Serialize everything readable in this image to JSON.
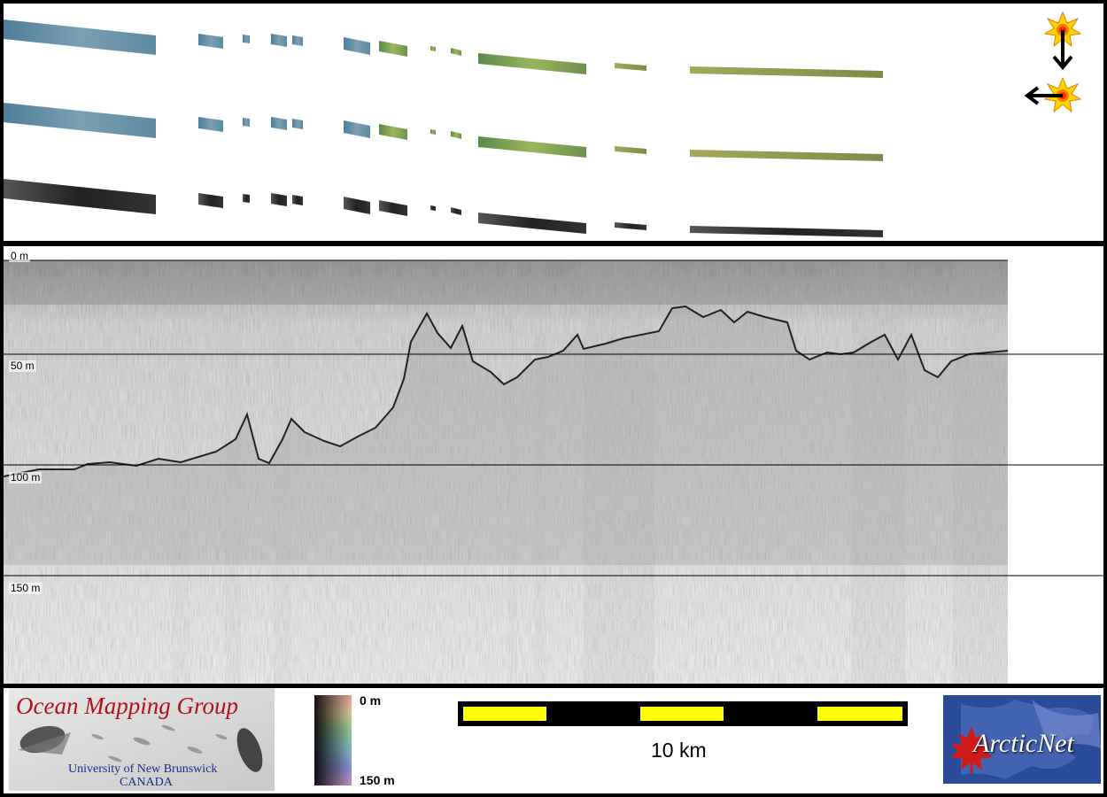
{
  "swath_panel": {
    "rows": [
      "backscatter-color-row",
      "backscatter-color-row",
      "backscatter-grayscale-row"
    ],
    "sun_icons": [
      "sun-illumination-icon",
      "sun-illumination-icon"
    ],
    "arrow_directions": [
      "down",
      "left"
    ]
  },
  "profile": {
    "depth_labels": [
      "0 m",
      "50 m",
      "100 m",
      "150 m"
    ],
    "colors": {
      "seafloor_line": "#222222",
      "gridline": "#000000",
      "noise": "#808080"
    }
  },
  "footer": {
    "ocean_mapping": {
      "title": "Ocean Mapping Group",
      "line1": "University of New Brunswick",
      "line2": "CANADA",
      "title_color": "#b0121a",
      "sub_color": "#1a2a8c"
    },
    "colorbar": {
      "top_label": "0 m",
      "bottom_label": "150 m"
    },
    "scalebar": {
      "label": "10 km",
      "segment_colors": [
        "#ffff00",
        "#000000",
        "#ffff00",
        "#000000",
        "#ffff00"
      ]
    },
    "arcticnet": {
      "name": "ArcticNet",
      "bg_color": "#1e3a8c",
      "leaf_color": "#d01a1a"
    }
  }
}
